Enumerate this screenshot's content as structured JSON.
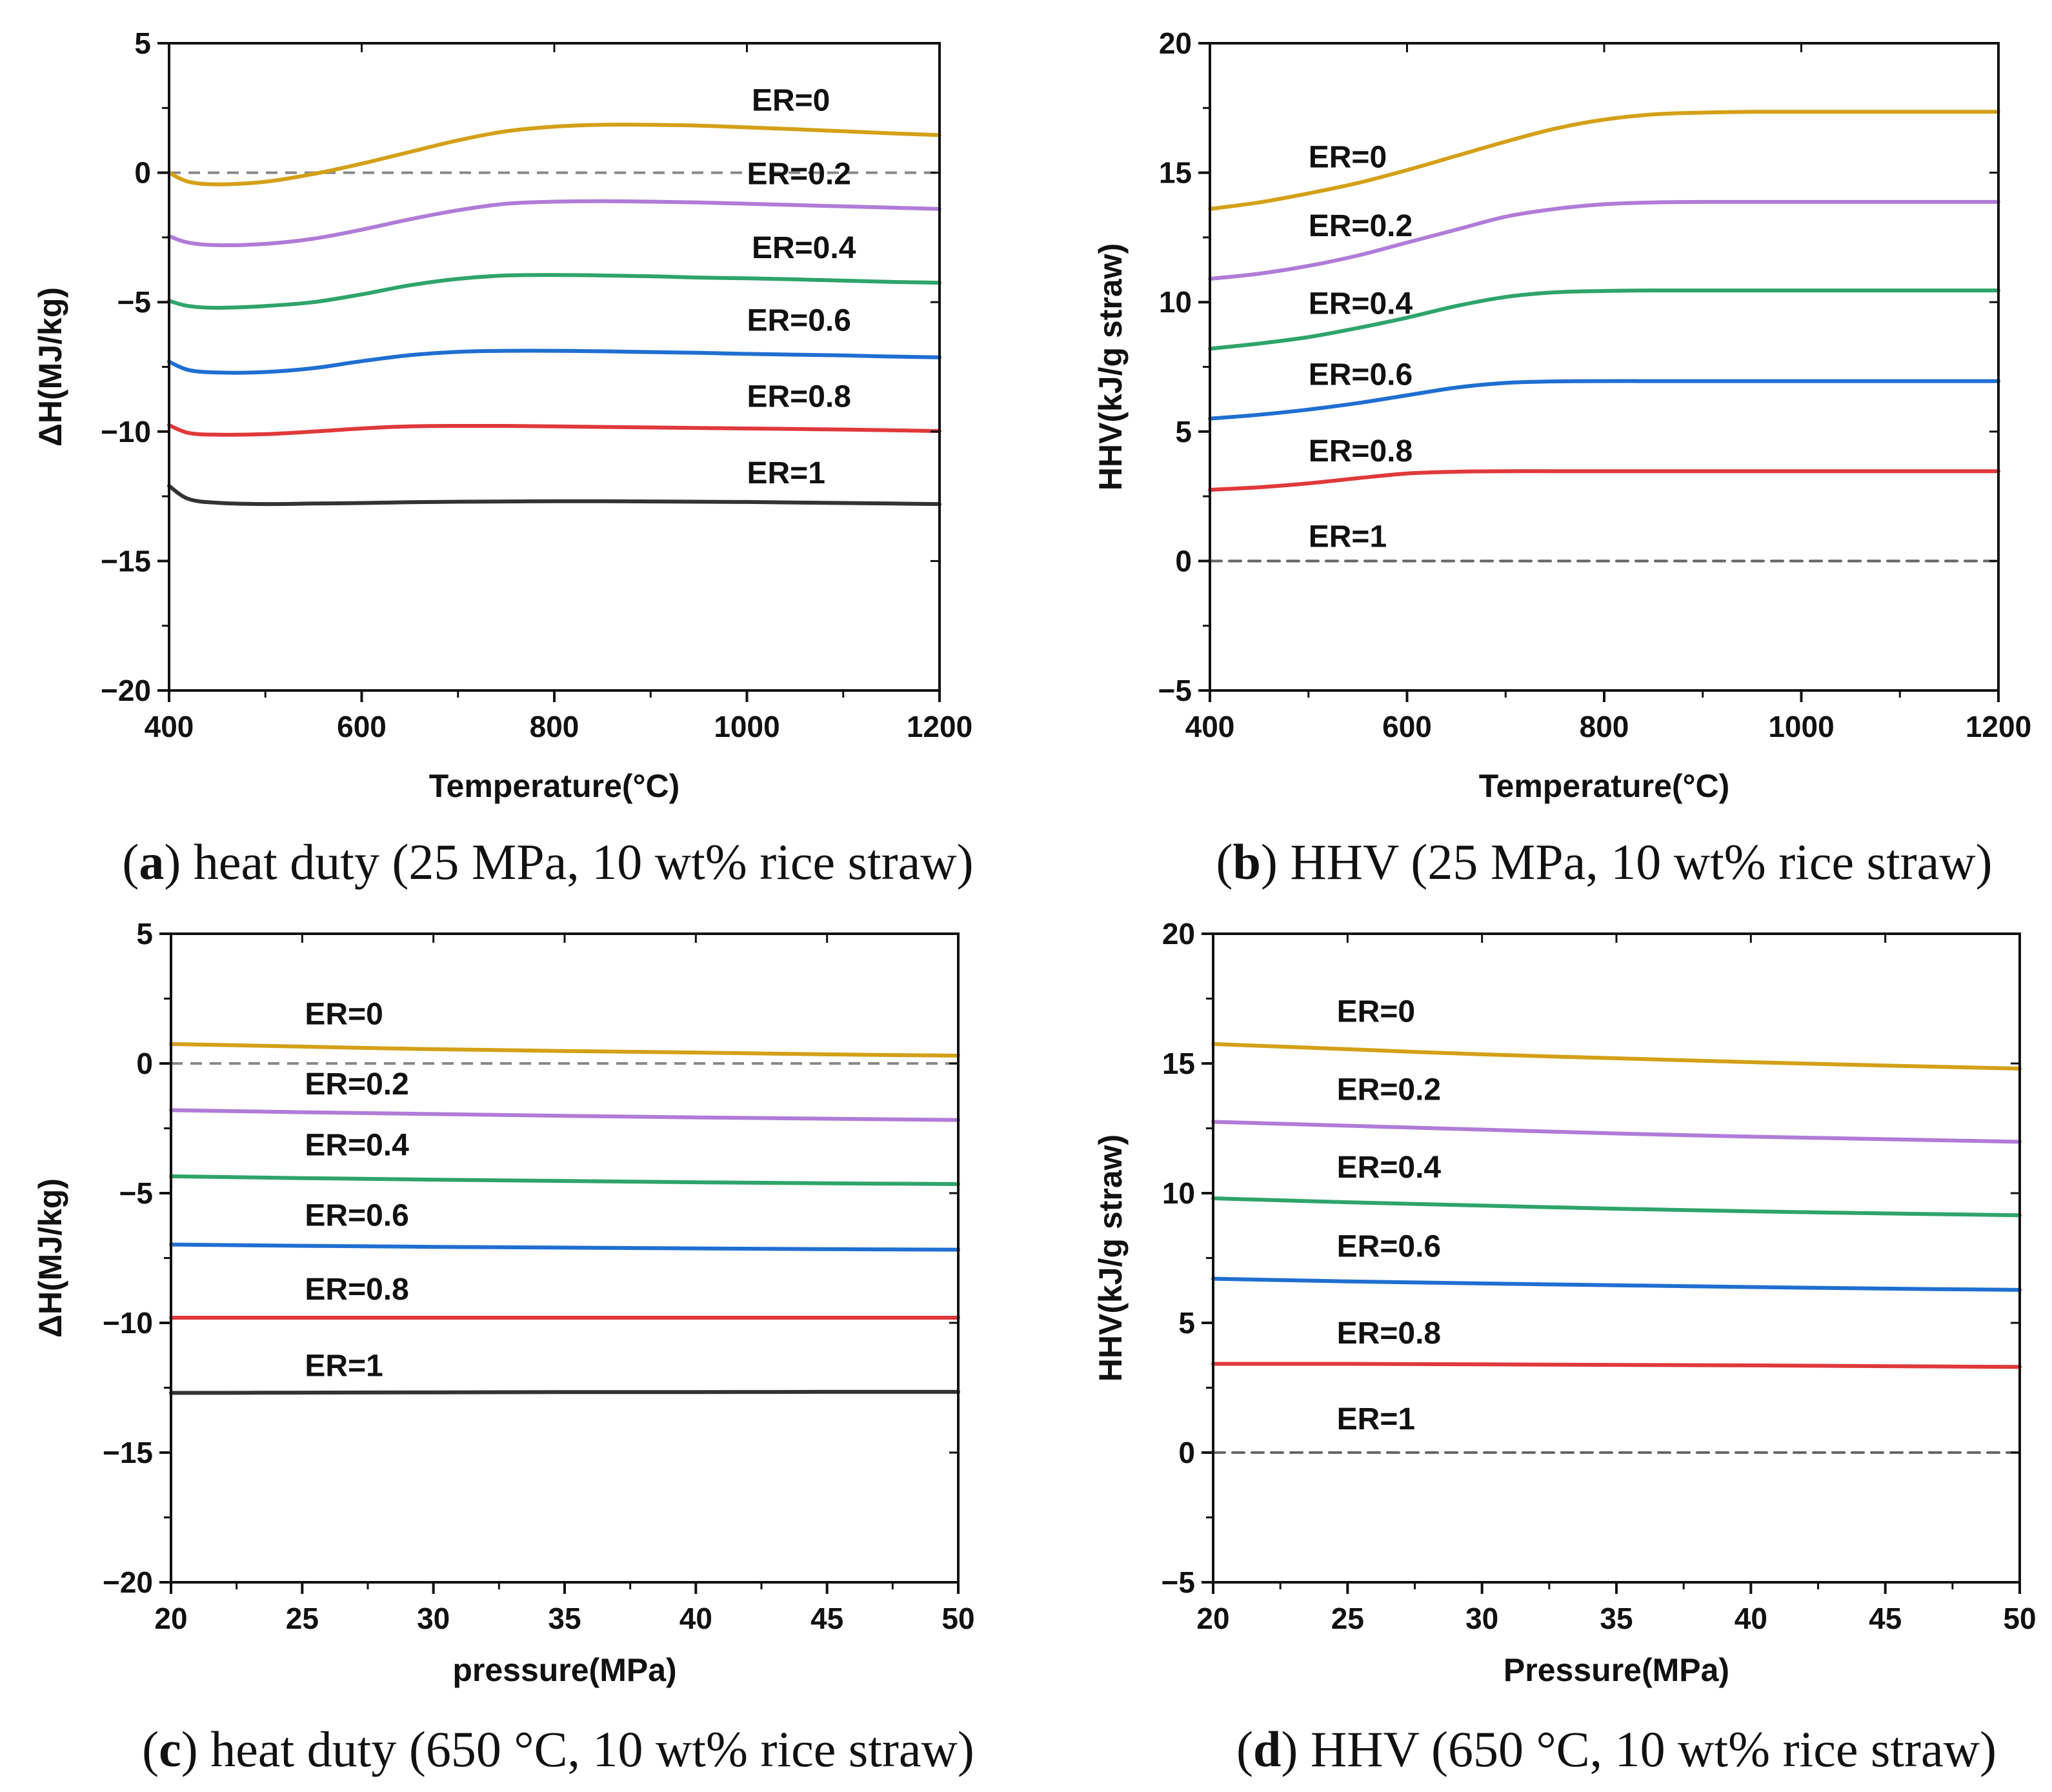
{
  "chart_data": [
    {
      "id": "a",
      "type": "line",
      "caption_letter": "a",
      "caption_text": " heat duty (25 MPa, 10 wt% rice straw)",
      "caption_open": "(",
      "caption_close": ")",
      "xlabel": "Temperature(°C)",
      "ylabel": "ΔH(MJ/kg)",
      "xlim": [
        400,
        1200
      ],
      "ylim": [
        -20,
        5
      ],
      "xticks": [
        400,
        600,
        800,
        1000,
        1200
      ],
      "yticks": [
        -20,
        -15,
        -10,
        -5,
        0,
        5
      ],
      "xtick_labels": [
        "400",
        "600",
        "800",
        "1000",
        "1200"
      ],
      "ytick_labels": [
        "−20",
        "−15",
        "−10",
        "−5",
        "0",
        "5"
      ],
      "reference_line": 0,
      "series": [
        {
          "name": "ER=0",
          "color": "#D4A017",
          "x": [
            400,
            420,
            450,
            500,
            550,
            600,
            650,
            700,
            750,
            800,
            850,
            900,
            950,
            1000,
            1050,
            1100,
            1150,
            1200
          ],
          "values": [
            0.0,
            -0.35,
            -0.45,
            -0.35,
            -0.05,
            0.35,
            0.8,
            1.25,
            1.6,
            1.78,
            1.85,
            1.85,
            1.82,
            1.75,
            1.68,
            1.6,
            1.52,
            1.45
          ],
          "label_at": [
            1005,
            2.4
          ]
        },
        {
          "name": "ER=0.2",
          "color": "#B07CD8",
          "x": [
            400,
            420,
            450,
            500,
            550,
            600,
            650,
            700,
            750,
            800,
            850,
            900,
            950,
            1000,
            1050,
            1100,
            1150,
            1200
          ],
          "values": [
            -2.45,
            -2.7,
            -2.8,
            -2.75,
            -2.55,
            -2.2,
            -1.8,
            -1.45,
            -1.2,
            -1.12,
            -1.1,
            -1.12,
            -1.15,
            -1.2,
            -1.25,
            -1.3,
            -1.35,
            -1.4
          ],
          "label_at": [
            1000,
            -0.45
          ]
        },
        {
          "name": "ER=0.4",
          "color": "#2EA46B",
          "x": [
            400,
            420,
            450,
            500,
            550,
            600,
            650,
            700,
            750,
            800,
            850,
            900,
            950,
            1000,
            1050,
            1100,
            1150,
            1200
          ],
          "values": [
            -4.95,
            -5.15,
            -5.22,
            -5.15,
            -5.0,
            -4.7,
            -4.35,
            -4.1,
            -3.97,
            -3.95,
            -3.97,
            -4.0,
            -4.05,
            -4.08,
            -4.12,
            -4.17,
            -4.22,
            -4.25
          ],
          "label_at": [
            1005,
            -3.3
          ]
        },
        {
          "name": "ER=0.6",
          "color": "#1F6FD1",
          "x": [
            400,
            420,
            450,
            500,
            550,
            600,
            650,
            700,
            750,
            800,
            850,
            900,
            950,
            1000,
            1050,
            1100,
            1150,
            1200
          ],
          "values": [
            -7.3,
            -7.62,
            -7.72,
            -7.7,
            -7.55,
            -7.28,
            -7.05,
            -6.92,
            -6.88,
            -6.88,
            -6.9,
            -6.93,
            -6.96,
            -7.0,
            -7.03,
            -7.06,
            -7.1,
            -7.13
          ],
          "label_at": [
            1000,
            -6.1
          ]
        },
        {
          "name": "ER=0.8",
          "color": "#E0393B",
          "x": [
            400,
            420,
            450,
            500,
            550,
            600,
            650,
            700,
            750,
            800,
            850,
            900,
            950,
            1000,
            1050,
            1100,
            1150,
            1200
          ],
          "values": [
            -9.75,
            -10.05,
            -10.12,
            -10.1,
            -10.0,
            -9.88,
            -9.8,
            -9.78,
            -9.78,
            -9.8,
            -9.82,
            -9.84,
            -9.86,
            -9.88,
            -9.9,
            -9.92,
            -9.95,
            -9.98
          ],
          "label_at": [
            1000,
            -9.05
          ]
        },
        {
          "name": "ER=1",
          "color": "#333333",
          "x": [
            400,
            420,
            450,
            500,
            550,
            600,
            650,
            700,
            750,
            800,
            850,
            900,
            950,
            1000,
            1050,
            1100,
            1150,
            1200
          ],
          "values": [
            -12.1,
            -12.6,
            -12.75,
            -12.8,
            -12.78,
            -12.76,
            -12.73,
            -12.71,
            -12.7,
            -12.69,
            -12.69,
            -12.7,
            -12.71,
            -12.72,
            -12.74,
            -12.76,
            -12.78,
            -12.8
          ],
          "label_at": [
            1000,
            -12.0
          ]
        }
      ]
    },
    {
      "id": "b",
      "type": "line",
      "caption_letter": "b",
      "caption_text": " HHV (25 MPa, 10 wt% rice straw)",
      "caption_open": "(",
      "caption_close": ")",
      "xlabel": "Temperature(°C)",
      "ylabel": "HHV(kJ/g straw)",
      "xlim": [
        400,
        1200
      ],
      "ylim": [
        -5,
        20
      ],
      "xticks": [
        400,
        600,
        800,
        1000,
        1200
      ],
      "yticks": [
        -5,
        0,
        5,
        10,
        15,
        20
      ],
      "xtick_labels": [
        "400",
        "600",
        "800",
        "1000",
        "1200"
      ],
      "ytick_labels": [
        "−5",
        "0",
        "5",
        "10",
        "15",
        "20"
      ],
      "reference_line": 0,
      "series": [
        {
          "name": "ER=0",
          "color": "#D4A017",
          "x": [
            400,
            450,
            500,
            550,
            600,
            650,
            700,
            750,
            800,
            850,
            900,
            950,
            1000,
            1050,
            1100,
            1150,
            1200
          ],
          "values": [
            13.6,
            13.85,
            14.2,
            14.6,
            15.1,
            15.65,
            16.2,
            16.7,
            17.05,
            17.25,
            17.32,
            17.35,
            17.35,
            17.35,
            17.35,
            17.35,
            17.35
          ],
          "label_at": [
            500,
            15.2
          ]
        },
        {
          "name": "ER=0.2",
          "color": "#B07CD8",
          "x": [
            400,
            450,
            500,
            550,
            600,
            650,
            700,
            750,
            800,
            850,
            900,
            950,
            1000,
            1050,
            1100,
            1150,
            1200
          ],
          "values": [
            10.9,
            11.1,
            11.4,
            11.8,
            12.3,
            12.8,
            13.3,
            13.6,
            13.78,
            13.85,
            13.87,
            13.87,
            13.87,
            13.87,
            13.87,
            13.87,
            13.87
          ],
          "label_at": [
            500,
            12.55
          ]
        },
        {
          "name": "ER=0.4",
          "color": "#2EA46B",
          "x": [
            400,
            450,
            500,
            550,
            600,
            650,
            700,
            750,
            800,
            850,
            900,
            950,
            1000,
            1050,
            1100,
            1150,
            1200
          ],
          "values": [
            8.2,
            8.4,
            8.65,
            9.0,
            9.4,
            9.85,
            10.2,
            10.38,
            10.43,
            10.45,
            10.45,
            10.45,
            10.45,
            10.45,
            10.45,
            10.45,
            10.45
          ],
          "label_at": [
            500,
            9.55
          ]
        },
        {
          "name": "ER=0.6",
          "color": "#1F6FD1",
          "x": [
            400,
            450,
            500,
            550,
            600,
            650,
            700,
            750,
            800,
            850,
            900,
            950,
            1000,
            1050,
            1100,
            1150,
            1200
          ],
          "values": [
            5.5,
            5.65,
            5.85,
            6.1,
            6.4,
            6.7,
            6.88,
            6.94,
            6.95,
            6.95,
            6.95,
            6.95,
            6.95,
            6.95,
            6.95,
            6.95,
            6.95
          ],
          "label_at": [
            500,
            6.8
          ]
        },
        {
          "name": "ER=0.8",
          "color": "#E0393B",
          "x": [
            400,
            450,
            500,
            550,
            600,
            650,
            700,
            750,
            800,
            850,
            900,
            950,
            1000,
            1050,
            1100,
            1150,
            1200
          ],
          "values": [
            2.75,
            2.85,
            3.0,
            3.2,
            3.38,
            3.45,
            3.47,
            3.47,
            3.47,
            3.47,
            3.47,
            3.47,
            3.47,
            3.47,
            3.47,
            3.47,
            3.47
          ],
          "label_at": [
            500,
            3.85
          ]
        },
        {
          "name": "ER=1",
          "color": "#666666",
          "dashed": true,
          "x": [
            400,
            1200
          ],
          "values": [
            0,
            0
          ],
          "label_at": [
            500,
            0.55
          ]
        }
      ]
    },
    {
      "id": "c",
      "type": "line",
      "caption_letter": "c",
      "caption_text": " heat duty (650 °C, 10 wt% rice straw)",
      "caption_open": "(",
      "caption_close": ")",
      "xlabel": "pressure(MPa)",
      "ylabel": "ΔH(MJ/kg)",
      "xlim": [
        20,
        50
      ],
      "ylim": [
        -20,
        5
      ],
      "xticks": [
        20,
        25,
        30,
        35,
        40,
        45,
        50
      ],
      "yticks": [
        -20,
        -15,
        -10,
        -5,
        0,
        5
      ],
      "xtick_labels": [
        "20",
        "25",
        "30",
        "35",
        "40",
        "45",
        "50"
      ],
      "ytick_labels": [
        "−20",
        "−15",
        "−10",
        "−5",
        "0",
        "5"
      ],
      "reference_line": 0,
      "series": [
        {
          "name": "ER=0",
          "color": "#D4A017",
          "x": [
            20,
            25,
            30,
            35,
            40,
            45,
            50
          ],
          "values": [
            0.75,
            0.65,
            0.55,
            0.48,
            0.42,
            0.35,
            0.3
          ],
          "label_at": [
            25.1,
            1.5
          ]
        },
        {
          "name": "ER=0.2",
          "color": "#B07CD8",
          "x": [
            20,
            25,
            30,
            35,
            40,
            45,
            50
          ],
          "values": [
            -1.8,
            -1.88,
            -1.95,
            -2.02,
            -2.08,
            -2.13,
            -2.18
          ],
          "label_at": [
            25.1,
            -1.2
          ]
        },
        {
          "name": "ER=0.4",
          "color": "#2EA46B",
          "x": [
            20,
            25,
            30,
            35,
            40,
            45,
            50
          ],
          "values": [
            -4.35,
            -4.42,
            -4.48,
            -4.53,
            -4.58,
            -4.62,
            -4.65
          ],
          "label_at": [
            25.1,
            -3.55
          ]
        },
        {
          "name": "ER=0.6",
          "color": "#1F6FD1",
          "x": [
            20,
            25,
            30,
            35,
            40,
            45,
            50
          ],
          "values": [
            -6.98,
            -7.03,
            -7.07,
            -7.1,
            -7.13,
            -7.16,
            -7.18
          ],
          "label_at": [
            25.1,
            -6.25
          ]
        },
        {
          "name": "ER=0.8",
          "color": "#E0393B",
          "x": [
            20,
            25,
            30,
            35,
            40,
            45,
            50
          ],
          "values": [
            -9.8,
            -9.8,
            -9.8,
            -9.8,
            -9.8,
            -9.8,
            -9.8
          ],
          "label_at": [
            25.1,
            -9.1
          ]
        },
        {
          "name": "ER=1",
          "color": "#333333",
          "x": [
            20,
            25,
            30,
            35,
            40,
            45,
            50
          ],
          "values": [
            -12.7,
            -12.69,
            -12.68,
            -12.67,
            -12.67,
            -12.66,
            -12.66
          ],
          "label_at": [
            25.1,
            -12.05
          ]
        }
      ]
    },
    {
      "id": "d",
      "type": "line",
      "caption_letter": "d",
      "caption_text": " HHV (650 °C, 10 wt% rice straw)",
      "caption_open": "(",
      "caption_close": ")",
      "xlabel": "Pressure(MPa)",
      "ylabel": "HHV(kJ/g straw)",
      "xlim": [
        20,
        50
      ],
      "ylim": [
        -5,
        20
      ],
      "xticks": [
        20,
        25,
        30,
        35,
        40,
        45,
        50
      ],
      "yticks": [
        -5,
        0,
        5,
        10,
        15,
        20
      ],
      "xtick_labels": [
        "20",
        "25",
        "30",
        "35",
        "40",
        "45",
        "50"
      ],
      "ytick_labels": [
        "−5",
        "0",
        "5",
        "10",
        "15",
        "20"
      ],
      "reference_line": 0,
      "series": [
        {
          "name": "ER=0",
          "color": "#D4A017",
          "x": [
            20,
            25,
            30,
            35,
            40,
            45,
            50
          ],
          "values": [
            15.75,
            15.55,
            15.35,
            15.2,
            15.05,
            14.92,
            14.8
          ],
          "label_at": [
            24.6,
            16.6
          ]
        },
        {
          "name": "ER=0.2",
          "color": "#B07CD8",
          "x": [
            20,
            25,
            30,
            35,
            40,
            45,
            50
          ],
          "values": [
            12.75,
            12.6,
            12.45,
            12.3,
            12.18,
            12.08,
            11.98
          ],
          "label_at": [
            24.6,
            13.6
          ]
        },
        {
          "name": "ER=0.4",
          "color": "#2EA46B",
          "x": [
            20,
            25,
            30,
            35,
            40,
            45,
            50
          ],
          "values": [
            9.8,
            9.65,
            9.52,
            9.4,
            9.3,
            9.22,
            9.15
          ],
          "label_at": [
            24.6,
            10.6
          ]
        },
        {
          "name": "ER=0.6",
          "color": "#1F6FD1",
          "x": [
            20,
            25,
            30,
            35,
            40,
            45,
            50
          ],
          "values": [
            6.7,
            6.6,
            6.52,
            6.45,
            6.38,
            6.32,
            6.27
          ],
          "label_at": [
            24.6,
            7.55
          ]
        },
        {
          "name": "ER=0.8",
          "color": "#E0393B",
          "x": [
            20,
            25,
            30,
            35,
            40,
            45,
            50
          ],
          "values": [
            3.42,
            3.42,
            3.4,
            3.38,
            3.36,
            3.33,
            3.3
          ],
          "label_at": [
            24.6,
            4.2
          ]
        },
        {
          "name": "ER=1",
          "color": "#666666",
          "dashed": true,
          "x": [
            20,
            50
          ],
          "values": [
            0,
            0
          ],
          "label_at": [
            24.6,
            0.9
          ]
        }
      ]
    }
  ]
}
